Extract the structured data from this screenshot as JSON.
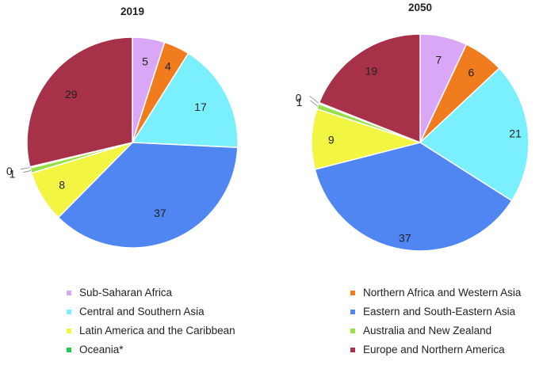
{
  "chart_data": [
    {
      "type": "pie",
      "title": "2019",
      "categories": [
        "Sub-Saharan Africa",
        "Northern Africa and Western Asia",
        "Central and Southern Asia",
        "Eastern and South-Eastern Asia",
        "Latin America and the Caribbean",
        "Australia and New Zealand",
        "Oceania*",
        "Europe and Northern America"
      ],
      "values": [
        5,
        4,
        17,
        37,
        8,
        1,
        0,
        29
      ],
      "labels": [
        "5",
        "4",
        "17",
        "37",
        "8",
        "1",
        "0",
        "29"
      ]
    },
    {
      "type": "pie",
      "title": "2050",
      "categories": [
        "Sub-Saharan Africa",
        "Northern Africa and Western Asia",
        "Central and Southern Asia",
        "Eastern and South-Eastern Asia",
        "Latin America and the Caribbean",
        "Australia and New Zealand",
        "Oceania*",
        "Europe and Northern America"
      ],
      "values": [
        7,
        6,
        21,
        37,
        9,
        1,
        0,
        19
      ],
      "labels": [
        "7",
        "6",
        "21",
        "37",
        "9",
        "1",
        "0",
        "19"
      ]
    }
  ],
  "colors": [
    "#d9a7f5",
    "#f07c1e",
    "#7af0ff",
    "#4f86f2",
    "#f2f542",
    "#97e048",
    "#23c84f",
    "#a8314a"
  ],
  "legend": {
    "left": [
      "Sub-Saharan Africa",
      "Central and Southern Asia",
      "Latin America and the Caribbean",
      "Oceania*"
    ],
    "right": [
      "Northern Africa and Western Asia",
      "Eastern and South-Eastern Asia",
      "Australia and New Zealand",
      "Europe and Northern America"
    ],
    "left_colors": [
      "#d9a7f5",
      "#7af0ff",
      "#f2f542",
      "#23c84f"
    ],
    "right_colors": [
      "#f07c1e",
      "#4f86f2",
      "#97e048",
      "#a8314a"
    ],
    "position": "bottom"
  }
}
